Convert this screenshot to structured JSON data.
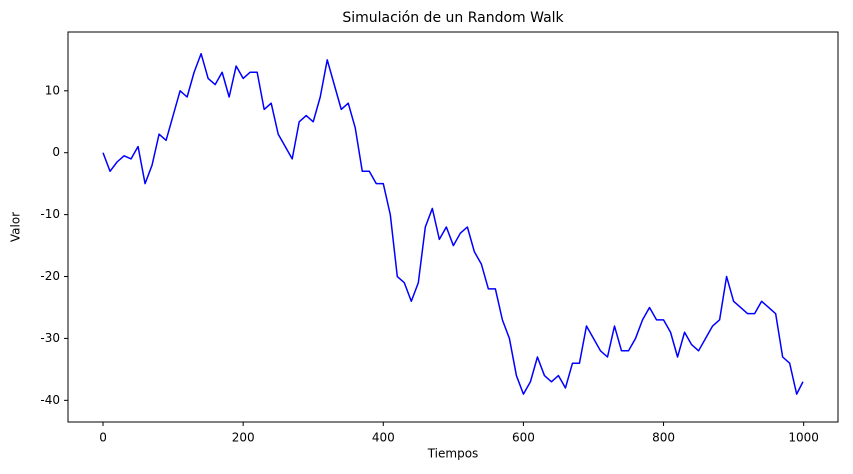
{
  "chart_data": {
    "type": "line",
    "title": "Simulación de un Random Walk",
    "x_label": "Tiempos",
    "y_label": "Valor",
    "x": [
      0,
      10,
      20,
      30,
      40,
      50,
      60,
      70,
      80,
      90,
      100,
      110,
      120,
      130,
      140,
      150,
      160,
      170,
      180,
      190,
      200,
      210,
      220,
      230,
      240,
      250,
      260,
      270,
      280,
      290,
      300,
      310,
      320,
      330,
      340,
      350,
      360,
      370,
      380,
      390,
      400,
      410,
      420,
      430,
      440,
      450,
      460,
      470,
      480,
      490,
      500,
      510,
      520,
      530,
      540,
      550,
      560,
      570,
      580,
      590,
      600,
      610,
      620,
      630,
      640,
      650,
      660,
      670,
      680,
      690,
      700,
      710,
      720,
      730,
      740,
      750,
      760,
      770,
      780,
      790,
      800,
      810,
      820,
      830,
      840,
      850,
      860,
      870,
      880,
      890,
      900,
      910,
      920,
      930,
      940,
      950,
      960,
      970,
      980,
      990,
      999
    ],
    "series": [
      {
        "name": "Random Walk",
        "color": "#0000ff",
        "values": [
          0,
          -3,
          -1.5,
          -0.5,
          -1,
          1,
          -5,
          -2,
          3,
          2,
          6,
          10,
          9,
          13,
          16,
          12,
          11,
          13,
          9,
          14,
          12,
          13,
          13,
          7,
          8,
          3,
          1,
          -1,
          5,
          6,
          5,
          9,
          15,
          11,
          7,
          8,
          4,
          -3,
          -3,
          -5,
          -5,
          -10,
          -20,
          -21,
          -24,
          -21,
          -12,
          -9,
          -14,
          -12,
          -15,
          -13,
          -12,
          -16,
          -18,
          -22,
          -22,
          -27,
          -30,
          -36,
          -39,
          -37,
          -33,
          -36,
          -37,
          -36,
          -38,
          -34,
          -34,
          -28,
          -30,
          -32,
          -33,
          -28,
          -32,
          -32,
          -30,
          -27,
          -25,
          -27,
          -27,
          -29,
          -33,
          -29,
          -31,
          -32,
          -30,
          -28,
          -27,
          -20,
          -24,
          -25,
          -26,
          -26,
          -24,
          -25,
          -26,
          -33,
          -34,
          -39,
          -37
        ]
      }
    ],
    "xlim": [
      -50,
      1049
    ],
    "ylim": [
      -43.5,
      19.5
    ],
    "xticks": [
      0,
      200,
      400,
      600,
      800,
      1000
    ],
    "yticks": [
      -40,
      -30,
      -20,
      -10,
      0,
      10
    ],
    "grid": false
  }
}
